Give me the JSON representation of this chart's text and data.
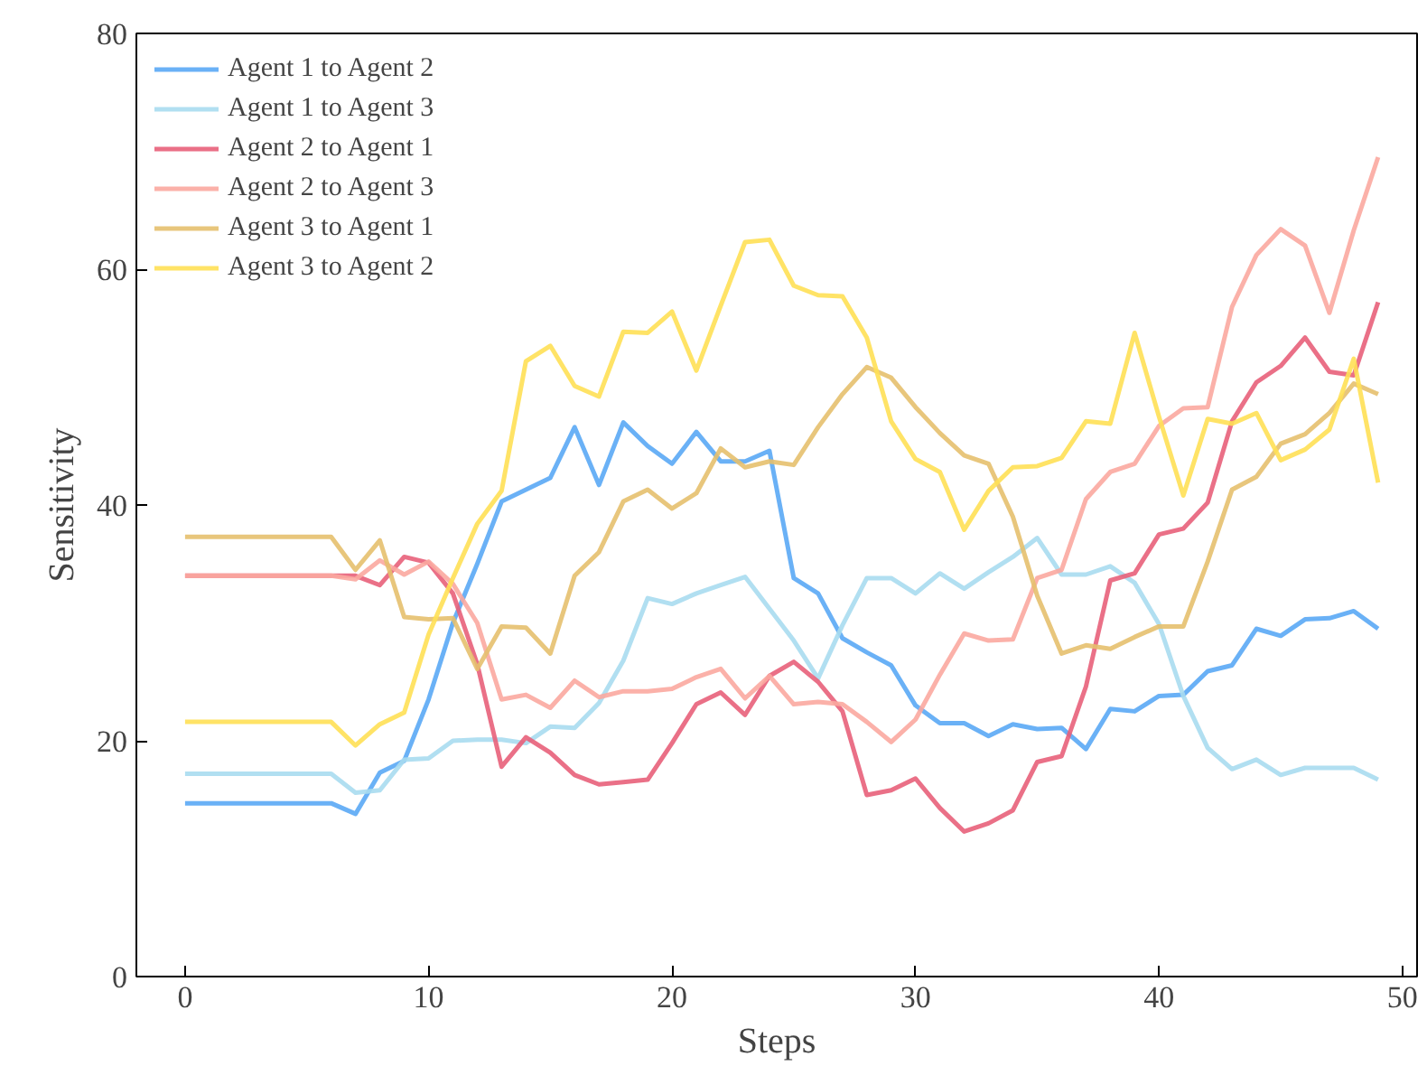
{
  "chart_data": {
    "type": "line",
    "xlabel": "Steps",
    "ylabel": "Sensitivity",
    "x": [
      0,
      1,
      2,
      3,
      4,
      5,
      6,
      7,
      8,
      9,
      10,
      11,
      12,
      13,
      14,
      15,
      16,
      17,
      18,
      19,
      20,
      21,
      22,
      23,
      24,
      25,
      26,
      27,
      28,
      29,
      30,
      31,
      32,
      33,
      34,
      35,
      36,
      37,
      38,
      39,
      40,
      41,
      42,
      43,
      44,
      45,
      46,
      47,
      48,
      49
    ],
    "xlim": [
      -2,
      50.6
    ],
    "ylim": [
      0,
      80
    ],
    "xticks": [
      0,
      10,
      20,
      30,
      40,
      50
    ],
    "yticks": [
      0,
      20,
      40,
      60,
      80
    ],
    "grid": false,
    "legend": "top left",
    "line_style": "solid",
    "marker": "none",
    "series": [
      {
        "name": "Agent 1 to Agent 2",
        "color": "#5aa9f5",
        "values": [
          14.7,
          14.7,
          14.7,
          14.7,
          14.7,
          14.7,
          14.7,
          13.8,
          17.3,
          18.3,
          23.5,
          30,
          35,
          40.3,
          41.3,
          42.3,
          46.6,
          41.7,
          47,
          45,
          43.5,
          46.2,
          43.7,
          43.7,
          44.6,
          33.8,
          32.5,
          28.7,
          27.5,
          26.4,
          23,
          21.5,
          21.5,
          20.4,
          21.4,
          21,
          21.1,
          19.3,
          22.7,
          22.5,
          23.8,
          23.9,
          25.9,
          26.4,
          29.5,
          28.9,
          30.3,
          30.4,
          31,
          29.5
        ]
      },
      {
        "name": "Agent 1 to Agent 3",
        "color": "#a8dcf0",
        "values": [
          17.2,
          17.2,
          17.2,
          17.2,
          17.2,
          17.2,
          17.2,
          15.6,
          15.8,
          18.4,
          18.5,
          20,
          20.1,
          20.1,
          19.8,
          21.2,
          21.1,
          23.2,
          26.8,
          32.1,
          31.6,
          32.5,
          33.2,
          33.9,
          31.2,
          28.5,
          25.3,
          29.8,
          33.8,
          33.8,
          32.5,
          34.2,
          32.9,
          34.3,
          35.6,
          37.2,
          34.1,
          34.1,
          34.8,
          33.4,
          29.9,
          23.8,
          19.4,
          17.6,
          18.4,
          17.1,
          17.7,
          17.7,
          17.7,
          16.7
        ]
      },
      {
        "name": "Agent 2 to Agent 1",
        "color": "#e8607a",
        "values": [
          34,
          34,
          34,
          34,
          34,
          34,
          34,
          34,
          33.2,
          35.6,
          35.1,
          32.5,
          26.5,
          17.8,
          20.3,
          19,
          17.1,
          16.3,
          16.5,
          16.7,
          19.8,
          23.1,
          24.1,
          22.2,
          25.5,
          26.7,
          25,
          22.5,
          15.4,
          15.8,
          16.8,
          14.3,
          12.3,
          13,
          14.1,
          18.2,
          18.7,
          24.6,
          33.6,
          34.2,
          37.5,
          38,
          40.2,
          47.1,
          50.4,
          51.8,
          54.2,
          51.3,
          51,
          57.2
        ]
      },
      {
        "name": "Agent 2 to Agent 3",
        "color": "#fba8a0",
        "values": [
          34,
          34,
          34,
          34,
          34,
          34,
          34,
          33.7,
          35.3,
          34.1,
          35.2,
          33.3,
          30,
          23.5,
          23.9,
          22.8,
          25.1,
          23.7,
          24.2,
          24.2,
          24.4,
          25.4,
          26.1,
          23.6,
          25.5,
          23.1,
          23.3,
          23.1,
          21.6,
          19.9,
          21.8,
          25.6,
          29.1,
          28.5,
          28.6,
          33.8,
          34.5,
          40.5,
          42.8,
          43.5,
          46.7,
          48.2,
          48.3,
          56.8,
          61.2,
          63.4,
          62,
          56.3,
          63.3,
          69.5
        ]
      },
      {
        "name": "Agent 3 to Agent 1",
        "color": "#e6c06e",
        "values": [
          37.3,
          37.3,
          37.3,
          37.3,
          37.3,
          37.3,
          37.3,
          34.5,
          37,
          30.5,
          30.3,
          30.4,
          26.1,
          29.7,
          29.6,
          27.4,
          34,
          36,
          40.3,
          41.3,
          39.7,
          41,
          44.8,
          43.2,
          43.7,
          43.4,
          46.6,
          49.4,
          51.7,
          50.8,
          48.3,
          46.1,
          44.2,
          43.5,
          39,
          32.3,
          27.4,
          28.1,
          27.8,
          28.8,
          29.7,
          29.7,
          35.2,
          41.3,
          42.4,
          45.2,
          46,
          47.8,
          50.3,
          49.4
        ]
      },
      {
        "name": "Agent 3 to Agent 2",
        "color": "#ffe055",
        "values": [
          21.6,
          21.6,
          21.6,
          21.6,
          21.6,
          21.6,
          21.6,
          19.6,
          21.4,
          22.4,
          29,
          33.8,
          38.4,
          41.2,
          52.2,
          53.5,
          50.1,
          49.2,
          54.7,
          54.6,
          56.4,
          51.4,
          56.9,
          62.3,
          62.5,
          58.6,
          57.8,
          57.7,
          54.2,
          47.1,
          43.9,
          42.8,
          37.9,
          41.2,
          43.2,
          43.3,
          44,
          47.1,
          46.9,
          54.6,
          47.5,
          40.8,
          47.3,
          46.9,
          47.8,
          43.8,
          44.7,
          46.4,
          52.4,
          41.9
        ]
      }
    ]
  }
}
